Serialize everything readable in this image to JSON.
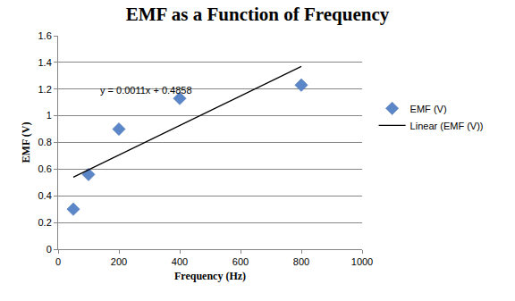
{
  "chart_data": {
    "type": "scatter",
    "title": "EMF as a Function of Frequency",
    "x_label": "Frequency (Hz)",
    "y_label": "EMF (V)",
    "series": [
      {
        "name": "EMF (V)",
        "type": "scatter",
        "marker": "diamond",
        "color": "#5b87c8",
        "x": [
          50,
          100,
          200,
          400,
          800
        ],
        "values": [
          0.3,
          0.56,
          0.9,
          1.13,
          1.23
        ]
      },
      {
        "name": "Linear (EMF (V))",
        "type": "line",
        "line_style": "solid",
        "color": "#000000",
        "x": [
          50,
          800
        ],
        "values": [
          0.54,
          1.37
        ]
      }
    ],
    "annotations": [
      {
        "text": "y = 0.0011x + 0.4858",
        "x": 290,
        "y": 1.19
      }
    ],
    "xlim": [
      0,
      1000
    ],
    "xticks": [
      0,
      200,
      400,
      600,
      800,
      1000
    ],
    "ylim": [
      0,
      1.6
    ],
    "yticks": [
      0,
      0.2,
      0.4,
      0.6,
      0.8,
      1,
      1.2,
      1.4,
      1.6
    ],
    "grid": true,
    "legend": "right"
  }
}
